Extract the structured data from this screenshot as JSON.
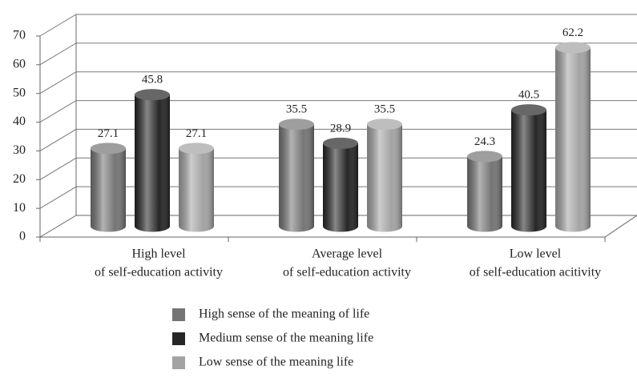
{
  "chart_data": {
    "type": "bar",
    "categories": [
      [
        "High level",
        "of self-education activity"
      ],
      [
        "Average level",
        "of self-education activity"
      ],
      [
        "Low level",
        "of self-education acitivity"
      ]
    ],
    "series": [
      {
        "name": "High sense of the meaning of life",
        "color": "#757575",
        "values": [
          27.1,
          35.5,
          24.3
        ]
      },
      {
        "name": "Medium sense of the meaning life",
        "color": "#262626",
        "values": [
          45.8,
          28.9,
          40.5
        ]
      },
      {
        "name": "Low sense of the meaning life",
        "color": "#a3a3a3",
        "values": [
          27.1,
          35.5,
          62.2
        ]
      }
    ],
    "ylim": [
      0,
      70
    ],
    "yticks": [
      0,
      10,
      20,
      30,
      40,
      50,
      60,
      70
    ],
    "grid": true
  }
}
